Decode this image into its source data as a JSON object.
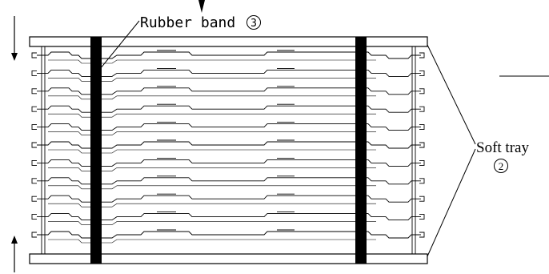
{
  "labels": {
    "rubber_band": "Rubber band",
    "rubber_band_number": "3",
    "soft_tray": "Soft tray",
    "soft_tray_number": "2"
  },
  "tray_count": 11,
  "band_count": 2,
  "colors": {
    "line": "#000000",
    "band": "#000000",
    "background": "#ffffff"
  }
}
